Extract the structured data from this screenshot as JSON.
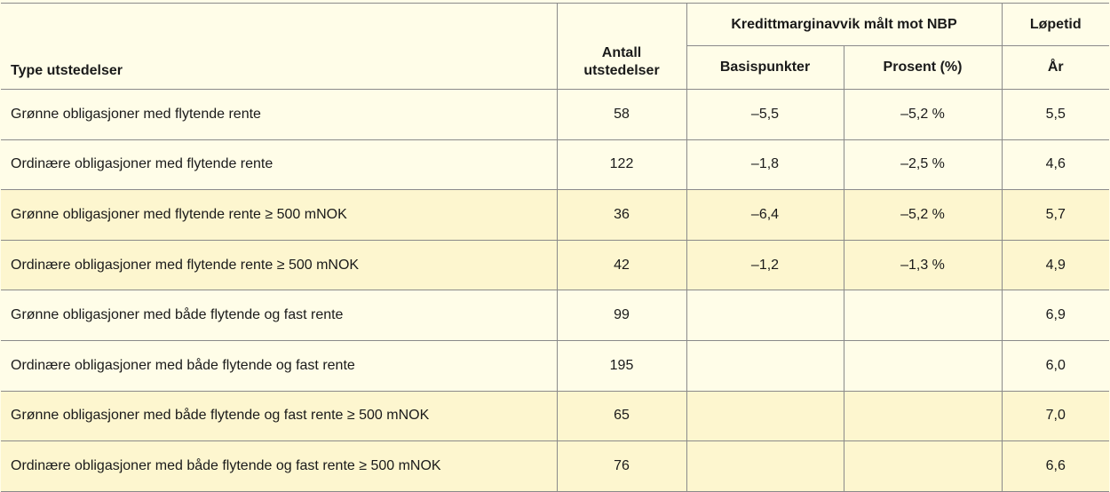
{
  "header": {
    "type_label": "Type utstedelser",
    "count_label_line1": "Antall",
    "count_label_line2": "utstedelser",
    "spread_group_label": "Kredittmarginavvik målt mot NBP",
    "basis_points_label": "Basispunkter",
    "percent_label": "Prosent (%)",
    "maturity_group_label": "Løpetid",
    "maturity_unit_label": "År"
  },
  "rows": [
    {
      "type": "Grønne obligasjoner med flytende rente",
      "count": "58",
      "bp": "–5,5",
      "pct": "–5,2 %",
      "years": "5,5",
      "tint": false
    },
    {
      "type": "Ordinære obligasjoner med flytende rente",
      "count": "122",
      "bp": "–1,8",
      "pct": "–2,5 %",
      "years": "4,6",
      "tint": false
    },
    {
      "type": "Grønne obligasjoner med flytende rente ≥ 500 mNOK",
      "count": "36",
      "bp": "–6,4",
      "pct": "–5,2 %",
      "years": "5,7",
      "tint": true
    },
    {
      "type": "Ordinære obligasjoner med flytende rente ≥ 500 mNOK",
      "count": "42",
      "bp": "–1,2",
      "pct": "–1,3 %",
      "years": "4,9",
      "tint": true
    },
    {
      "type": "Grønne obligasjoner med både flytende og fast rente",
      "count": "99",
      "bp": "",
      "pct": "",
      "years": "6,9",
      "tint": false
    },
    {
      "type": "Ordinære obligasjoner med både flytende og fast rente",
      "count": "195",
      "bp": "",
      "pct": "",
      "years": "6,0",
      "tint": false
    },
    {
      "type": "Grønne obligasjoner med både flytende og fast rente ≥ 500 mNOK",
      "count": "65",
      "bp": "",
      "pct": "",
      "years": "7,0",
      "tint": true
    },
    {
      "type": "Ordinære obligasjoner med både flytende og fast rente ≥ 500 mNOK",
      "count": "76",
      "bp": "",
      "pct": "",
      "years": "6,6",
      "tint": true
    }
  ]
}
